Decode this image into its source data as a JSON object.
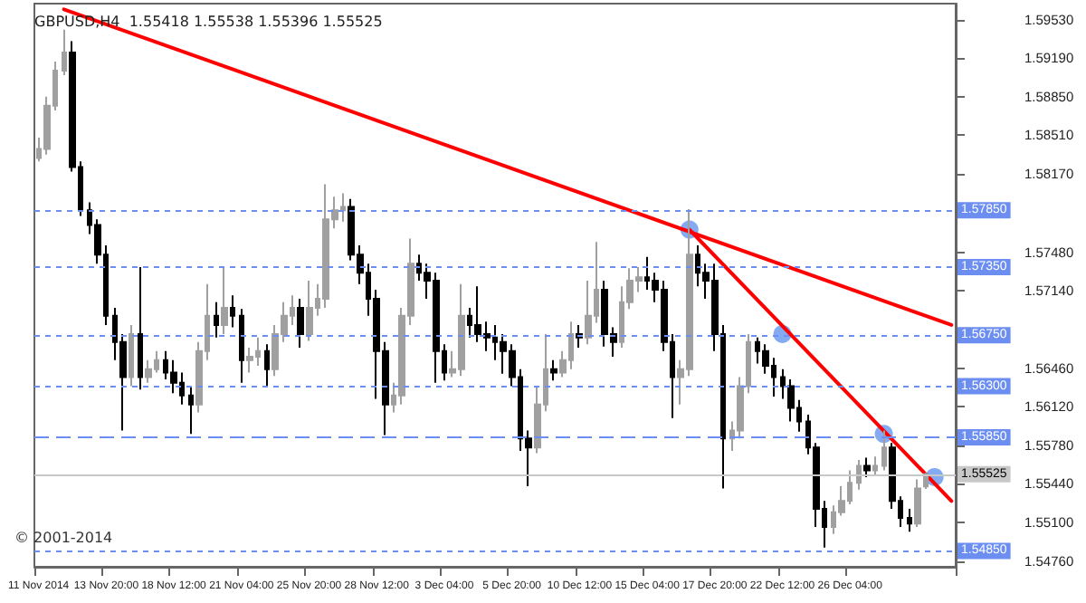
{
  "chart_data": {
    "type": "candlestick",
    "title": "GBPUSD,H4  1.55418 1.55538 1.55396 1.55525",
    "annotations": [
      "© 2001-2014"
    ],
    "categories": [
      "11 Nov 2014",
      null,
      null,
      null,
      null,
      null,
      null,
      null,
      "13 Nov 20:00",
      null,
      null,
      null,
      null,
      null,
      null,
      null,
      "18 Nov 12:00",
      null,
      null,
      null,
      null,
      null,
      null,
      null,
      "21 Nov 04:00",
      null,
      null,
      null,
      null,
      null,
      null,
      null,
      "25 Nov 20:00",
      null,
      null,
      null,
      null,
      null,
      null,
      null,
      "28 Nov 12:00",
      null,
      null,
      null,
      null,
      null,
      null,
      null,
      "3 Dec 04:00",
      null,
      null,
      null,
      null,
      null,
      null,
      null,
      "5 Dec 20:00",
      null,
      null,
      null,
      null,
      null,
      null,
      null,
      "10 Dec 12:00",
      null,
      null,
      null,
      null,
      null,
      null,
      null,
      "15 Dec 04:00",
      null,
      null,
      null,
      null,
      null,
      null,
      null,
      "17 Dec 20:00",
      null,
      null,
      null,
      null,
      null,
      null,
      null,
      "22 Dec 12:00",
      null,
      null,
      null,
      null,
      null,
      null,
      null,
      "26 Dec 04:00",
      null,
      null,
      null,
      null,
      null,
      null,
      null,
      null,
      null,
      null,
      null,
      null
    ],
    "ylim": [
      1.5471,
      1.5967
    ],
    "yticks": [
      {
        "value": 1.5953,
        "label": "1.59530"
      },
      {
        "value": 1.5919,
        "label": "1.59190"
      },
      {
        "value": 1.5885,
        "label": "1.58850"
      },
      {
        "value": 1.5851,
        "label": "1.58510"
      },
      {
        "value": 1.5817,
        "label": "1.58170"
      },
      {
        "value": 1.5748,
        "label": "1.57480"
      },
      {
        "value": 1.5714,
        "label": "1.57140"
      },
      {
        "value": 1.5646,
        "label": "1.56460"
      },
      {
        "value": 1.5612,
        "label": "1.56120"
      },
      {
        "value": 1.5578,
        "label": "1.55780"
      },
      {
        "value": 1.5544,
        "label": "1.55440"
      },
      {
        "value": 1.551,
        "label": "1.55100"
      },
      {
        "value": 1.5476,
        "label": "1.54760"
      }
    ],
    "grid": false,
    "ref_lines": [
      {
        "axis": "y",
        "value": 1.5785,
        "label": "1.57850",
        "color": "#6b8ef0",
        "line_style": "dotted"
      },
      {
        "axis": "y",
        "value": 1.5735,
        "label": "1.57350",
        "color": "#6b8ef0",
        "line_style": "dotted"
      },
      {
        "axis": "y",
        "value": 1.5675,
        "label": "1.56750",
        "color": "#6b8ef0",
        "line_style": "dotted"
      },
      {
        "axis": "y",
        "value": 1.563,
        "label": "1.56300",
        "color": "#6b8ef0",
        "line_style": "dotted"
      },
      {
        "axis": "y",
        "value": 1.5585,
        "label": "1.55850",
        "color": "#6b8ef0",
        "line_style": "dashed"
      },
      {
        "axis": "y",
        "value": 1.55525,
        "label": "1.55525",
        "color": "#c8c8c8",
        "line_style": "solid"
      },
      {
        "axis": "y",
        "value": 1.5485,
        "label": "1.54850",
        "color": "#6b8ef0",
        "line_style": "dotted"
      }
    ],
    "series": [
      {
        "type": "candlestick",
        "ohlc": [
          [
            1.5831,
            1.5849,
            1.5828,
            1.5839
          ],
          [
            1.5839,
            1.5885,
            1.5834,
            1.5877
          ],
          [
            1.5877,
            1.5916,
            1.5873,
            1.5908
          ],
          [
            1.5908,
            1.5944,
            1.5904,
            1.5924
          ],
          [
            1.5924,
            1.5934,
            1.5819,
            1.5823
          ],
          [
            1.5823,
            1.5828,
            1.578,
            1.5785
          ],
          [
            1.5785,
            1.5792,
            1.5764,
            1.5772
          ],
          [
            1.5772,
            1.5777,
            1.5738,
            1.5746
          ],
          [
            1.5746,
            1.5754,
            1.5684,
            1.5692
          ],
          [
            1.5692,
            1.5699,
            1.5653,
            1.5669
          ],
          [
            1.5669,
            1.5676,
            1.5591,
            1.5638
          ],
          [
            1.5638,
            1.5684,
            1.563,
            1.5676
          ],
          [
            1.5676,
            1.5735,
            1.5627,
            1.5638
          ],
          [
            1.5638,
            1.5653,
            1.5633,
            1.5645
          ],
          [
            1.5645,
            1.5661,
            1.5642,
            1.5653
          ],
          [
            1.5653,
            1.5661,
            1.5636,
            1.5642
          ],
          [
            1.5642,
            1.5653,
            1.5624,
            1.5633
          ],
          [
            1.5633,
            1.5642,
            1.5614,
            1.5622
          ],
          [
            1.5622,
            1.563,
            1.5588,
            1.5614
          ],
          [
            1.5614,
            1.5669,
            1.5607,
            1.5661
          ],
          [
            1.5661,
            1.572,
            1.5653,
            1.5692
          ],
          [
            1.5692,
            1.5704,
            1.5673,
            1.5684
          ],
          [
            1.5684,
            1.5735,
            1.5676,
            1.5699
          ],
          [
            1.5699,
            1.571,
            1.5682,
            1.5692
          ],
          [
            1.5692,
            1.5698,
            1.5633,
            1.5653
          ],
          [
            1.5653,
            1.5664,
            1.5642,
            1.5656
          ],
          [
            1.5656,
            1.5673,
            1.5648,
            1.5661
          ],
          [
            1.5661,
            1.5667,
            1.563,
            1.5645
          ],
          [
            1.5645,
            1.5684,
            1.5639,
            1.5676
          ],
          [
            1.5676,
            1.5704,
            1.5669,
            1.5692
          ],
          [
            1.5692,
            1.571,
            1.5684,
            1.5699
          ],
          [
            1.5699,
            1.5707,
            1.5664,
            1.5676
          ],
          [
            1.5676,
            1.5723,
            1.567,
            1.5699
          ],
          [
            1.5699,
            1.572,
            1.5692,
            1.5707
          ],
          [
            1.5707,
            1.5808,
            1.5699,
            1.5777
          ],
          [
            1.5777,
            1.5797,
            1.5769,
            1.5785
          ],
          [
            1.5785,
            1.58,
            1.5775,
            1.5788
          ],
          [
            1.5788,
            1.5795,
            1.5741,
            1.5746
          ],
          [
            1.5746,
            1.5754,
            1.572,
            1.573
          ],
          [
            1.573,
            1.5738,
            1.5692,
            1.5707
          ],
          [
            1.5707,
            1.5715,
            1.5619,
            1.5661
          ],
          [
            1.5661,
            1.5669,
            1.5587,
            1.5614
          ],
          [
            1.5614,
            1.5633,
            1.5607,
            1.5622
          ],
          [
            1.5622,
            1.5699,
            1.5614,
            1.5692
          ],
          [
            1.5692,
            1.576,
            1.5684,
            1.5738
          ],
          [
            1.5738,
            1.5746,
            1.5723,
            1.573
          ],
          [
            1.573,
            1.5738,
            1.5707,
            1.5723
          ],
          [
            1.5723,
            1.573,
            1.5633,
            1.5661
          ],
          [
            1.5661,
            1.5667,
            1.5635,
            1.5642
          ],
          [
            1.5642,
            1.5661,
            1.5638,
            1.5645
          ],
          [
            1.5645,
            1.572,
            1.5639,
            1.5692
          ],
          [
            1.5692,
            1.5699,
            1.5673,
            1.5684
          ],
          [
            1.5684,
            1.5718,
            1.5669,
            1.5676
          ],
          [
            1.5676,
            1.5687,
            1.5661,
            1.5673
          ],
          [
            1.5673,
            1.5684,
            1.5653,
            1.5669
          ],
          [
            1.5669,
            1.5676,
            1.5641,
            1.5661
          ],
          [
            1.5661,
            1.5667,
            1.563,
            1.5638
          ],
          [
            1.5638,
            1.5645,
            1.5573,
            1.5584
          ],
          [
            1.5584,
            1.5591,
            1.5542,
            1.5576
          ],
          [
            1.5576,
            1.563,
            1.5571,
            1.5614
          ],
          [
            1.5614,
            1.5676,
            1.5608,
            1.5645
          ],
          [
            1.5645,
            1.5653,
            1.5635,
            1.5642
          ],
          [
            1.5642,
            1.5661,
            1.5638,
            1.5653
          ],
          [
            1.5653,
            1.5687,
            1.5645,
            1.5676
          ],
          [
            1.5676,
            1.5684,
            1.5664,
            1.5673
          ],
          [
            1.5673,
            1.5723,
            1.5667,
            1.5692
          ],
          [
            1.5692,
            1.5757,
            1.5686,
            1.5715
          ],
          [
            1.5715,
            1.5723,
            1.5665,
            1.5676
          ],
          [
            1.5676,
            1.5682,
            1.5656,
            1.5669
          ],
          [
            1.5669,
            1.5718,
            1.5664,
            1.5704
          ],
          [
            1.5704,
            1.5734,
            1.5698,
            1.5723
          ],
          [
            1.5723,
            1.5735,
            1.5713,
            1.5726
          ],
          [
            1.5726,
            1.5744,
            1.5715,
            1.5723
          ],
          [
            1.5723,
            1.573,
            1.5704,
            1.5715
          ],
          [
            1.5715,
            1.5723,
            1.5661,
            1.5669
          ],
          [
            1.5669,
            1.5676,
            1.5602,
            1.5638
          ],
          [
            1.5638,
            1.5653,
            1.5614,
            1.5645
          ],
          [
            1.5645,
            1.5786,
            1.5639,
            1.5746
          ],
          [
            1.5746,
            1.5754,
            1.5718,
            1.573
          ],
          [
            1.573,
            1.5738,
            1.5707,
            1.5723
          ],
          [
            1.5723,
            1.5738,
            1.5661,
            1.5676
          ],
          [
            1.5676,
            1.5684,
            1.554,
            1.5584
          ],
          [
            1.5584,
            1.5599,
            1.5573,
            1.5591
          ],
          [
            1.5591,
            1.5638,
            1.5584,
            1.563
          ],
          [
            1.563,
            1.5676,
            1.5624,
            1.5669
          ],
          [
            1.5669,
            1.5673,
            1.565,
            1.5661
          ],
          [
            1.5661,
            1.5667,
            1.5641,
            1.5648
          ],
          [
            1.5648,
            1.5655,
            1.5621,
            1.5638
          ],
          [
            1.5638,
            1.5645,
            1.5619,
            1.563
          ],
          [
            1.563,
            1.5636,
            1.5599,
            1.5611
          ],
          [
            1.5611,
            1.5618,
            1.559,
            1.5599
          ],
          [
            1.5599,
            1.5605,
            1.557,
            1.5576
          ],
          [
            1.5576,
            1.558,
            1.5506,
            1.5522
          ],
          [
            1.5522,
            1.5529,
            1.5488,
            1.5506
          ],
          [
            1.5506,
            1.5525,
            1.55,
            1.5519
          ],
          [
            1.5519,
            1.5542,
            1.5516,
            1.5529
          ],
          [
            1.5529,
            1.5556,
            1.5526,
            1.5545
          ],
          [
            1.5545,
            1.5565,
            1.5539,
            1.556
          ],
          [
            1.556,
            1.5567,
            1.555,
            1.5556
          ],
          [
            1.5556,
            1.5568,
            1.5551,
            1.556
          ],
          [
            1.556,
            1.5591,
            1.5556,
            1.5576
          ],
          [
            1.5576,
            1.558,
            1.5522,
            1.5529
          ],
          [
            1.5529,
            1.5533,
            1.5506,
            1.5514
          ],
          [
            1.5514,
            1.5522,
            1.5502,
            1.5509
          ],
          [
            1.5509,
            1.5548,
            1.5506,
            1.554
          ],
          [
            1.55418,
            1.55538,
            1.55396,
            1.55525
          ],
          null,
          null,
          null
        ],
        "colors": [
          "#a0a0a0",
          "#a0a0a0",
          "#a0a0a0",
          "#a0a0a0",
          "#000000",
          "#000000",
          "#000000",
          "#000000",
          "#000000",
          "#000000",
          "#000000",
          "#a0a0a0",
          "#000000",
          "#a0a0a0",
          "#a0a0a0",
          "#000000",
          "#000000",
          "#000000",
          "#000000",
          "#a0a0a0",
          "#a0a0a0",
          "#000000",
          "#a0a0a0",
          "#000000",
          "#000000",
          "#a0a0a0",
          "#a0a0a0",
          "#000000",
          "#a0a0a0",
          "#a0a0a0",
          "#a0a0a0",
          "#000000",
          "#a0a0a0",
          "#a0a0a0",
          "#a0a0a0",
          "#a0a0a0",
          "#a0a0a0",
          "#000000",
          "#000000",
          "#000000",
          "#000000",
          "#000000",
          "#a0a0a0",
          "#a0a0a0",
          "#a0a0a0",
          "#000000",
          "#000000",
          "#000000",
          "#000000",
          "#a0a0a0",
          "#a0a0a0",
          "#000000",
          "#000000",
          "#000000",
          "#000000",
          "#000000",
          "#000000",
          "#000000",
          "#000000",
          "#a0a0a0",
          "#a0a0a0",
          "#000000",
          "#a0a0a0",
          "#a0a0a0",
          "#000000",
          "#a0a0a0",
          "#a0a0a0",
          "#000000",
          "#000000",
          "#a0a0a0",
          "#a0a0a0",
          "#a0a0a0",
          "#000000",
          "#000000",
          "#000000",
          "#000000",
          "#a0a0a0",
          "#a0a0a0",
          "#000000",
          "#000000",
          "#000000",
          "#000000",
          "#a0a0a0",
          "#a0a0a0",
          "#a0a0a0",
          "#000000",
          "#000000",
          "#000000",
          "#000000",
          "#000000",
          "#000000",
          "#000000",
          "#000000",
          "#000000",
          "#a0a0a0",
          "#a0a0a0",
          "#a0a0a0",
          "#a0a0a0",
          "#000000",
          "#a0a0a0",
          "#a0a0a0",
          "#000000",
          "#000000",
          "#000000",
          "#a0a0a0",
          "#a0a0a0",
          null,
          null,
          null
        ]
      },
      {
        "type": "line",
        "color": "#ff0000",
        "values": [
          null,
          null,
          null,
          1.5962,
          null,
          null,
          null,
          null,
          null,
          null,
          null,
          null,
          null,
          null,
          null,
          null,
          null,
          null,
          null,
          null,
          null,
          null,
          null,
          null,
          null,
          null,
          null,
          null,
          null,
          null,
          null,
          null,
          null,
          null,
          null,
          null,
          null,
          null,
          null,
          null,
          null,
          null,
          null,
          null,
          null,
          null,
          null,
          null,
          null,
          null,
          null,
          null,
          null,
          null,
          null,
          null,
          null,
          null,
          null,
          null,
          null,
          null,
          null,
          null,
          null,
          null,
          null,
          null,
          null,
          null,
          null,
          null,
          null,
          null,
          null,
          null,
          null,
          null,
          null,
          null,
          null,
          null,
          null,
          null,
          null,
          null,
          null,
          null,
          null,
          null,
          null,
          null,
          null,
          null,
          null,
          null,
          null,
          null,
          null,
          null,
          null,
          null,
          null,
          null,
          null,
          null,
          null,
          null,
          1.5684
        ]
      },
      {
        "type": "line",
        "color": "#ff0000",
        "values": [
          null,
          null,
          null,
          null,
          null,
          null,
          null,
          null,
          null,
          null,
          null,
          null,
          null,
          null,
          null,
          null,
          null,
          null,
          null,
          null,
          null,
          null,
          null,
          null,
          null,
          null,
          null,
          null,
          null,
          null,
          null,
          null,
          null,
          null,
          null,
          null,
          null,
          null,
          null,
          null,
          null,
          null,
          null,
          null,
          null,
          null,
          null,
          null,
          null,
          null,
          null,
          null,
          null,
          null,
          null,
          null,
          null,
          null,
          null,
          null,
          null,
          null,
          null,
          null,
          null,
          null,
          null,
          null,
          null,
          null,
          null,
          null,
          null,
          null,
          null,
          null,
          null,
          1.5768,
          null,
          null,
          null,
          null,
          null,
          null,
          null,
          null,
          null,
          null,
          null,
          null,
          null,
          null,
          null,
          null,
          null,
          null,
          null,
          null,
          null,
          null,
          null,
          null,
          null,
          null,
          null,
          null,
          null,
          null,
          1.5529
        ]
      },
      {
        "type": "scatter",
        "color": "#6f9cf0",
        "marker": "circle",
        "values": [
          null,
          null,
          null,
          null,
          null,
          null,
          null,
          null,
          null,
          null,
          null,
          null,
          null,
          null,
          null,
          null,
          null,
          null,
          null,
          null,
          null,
          null,
          null,
          null,
          null,
          null,
          null,
          null,
          null,
          null,
          null,
          null,
          null,
          null,
          null,
          null,
          null,
          null,
          null,
          null,
          null,
          null,
          null,
          null,
          null,
          null,
          null,
          null,
          null,
          null,
          null,
          null,
          null,
          null,
          null,
          null,
          null,
          null,
          null,
          null,
          null,
          null,
          null,
          null,
          null,
          null,
          null,
          null,
          null,
          null,
          null,
          null,
          null,
          null,
          null,
          null,
          null,
          1.5768,
          null,
          null,
          null,
          null,
          null,
          null,
          null,
          null,
          null,
          null,
          1.5676,
          null,
          null,
          null,
          null,
          null,
          null,
          null,
          null,
          null,
          null,
          null,
          1.5588,
          null,
          null,
          null,
          null,
          null,
          1.555,
          null,
          null
        ]
      }
    ]
  }
}
